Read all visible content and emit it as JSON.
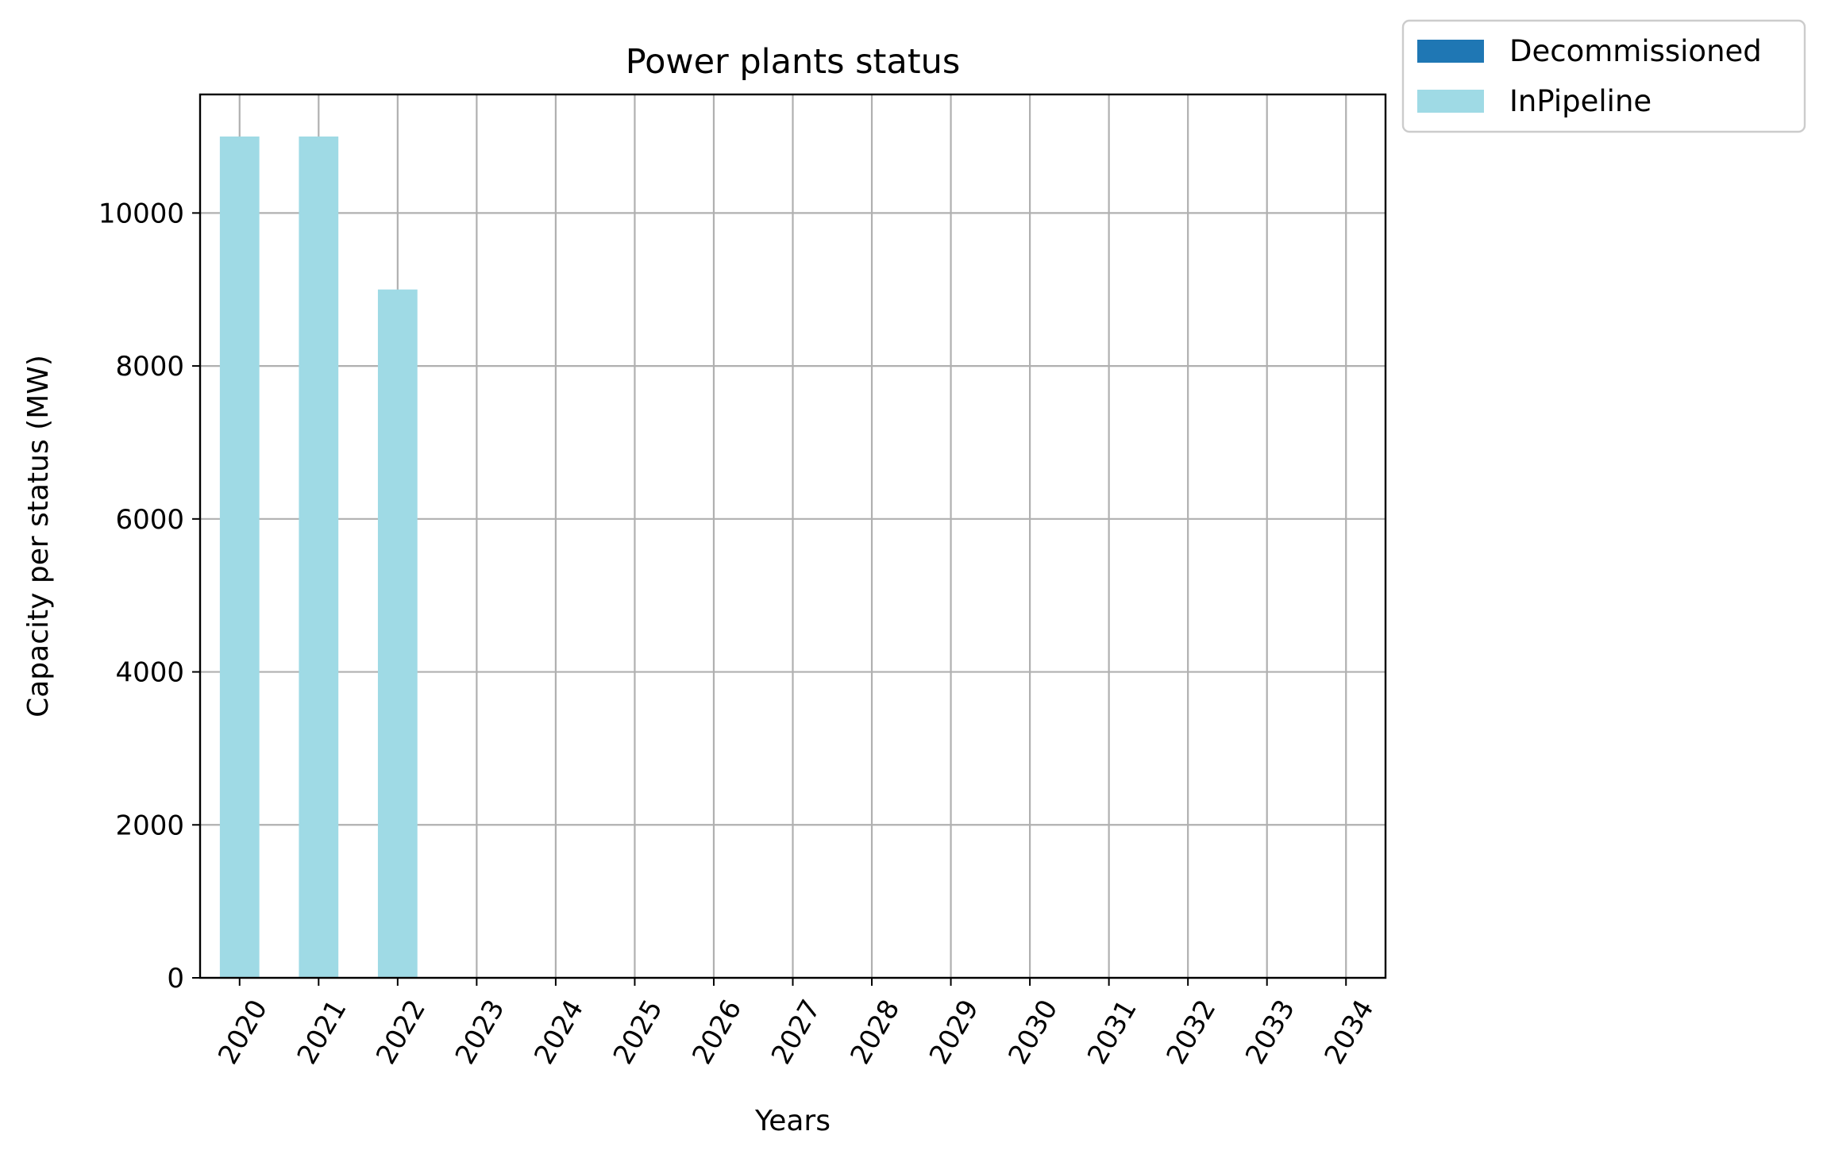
{
  "chart_data": {
    "type": "bar",
    "stacked": true,
    "title": "Power plants status",
    "xlabel": "Years",
    "ylabel": "Capacity per status (MW)",
    "categories": [
      "2020",
      "2021",
      "2022",
      "2023",
      "2024",
      "2025",
      "2026",
      "2027",
      "2028",
      "2029",
      "2030",
      "2031",
      "2032",
      "2033",
      "2034"
    ],
    "series": [
      {
        "name": "Decommissioned",
        "color": "#1f77b4",
        "values": [
          0,
          0,
          0,
          0,
          0,
          0,
          0,
          0,
          0,
          0,
          0,
          0,
          0,
          0,
          0
        ]
      },
      {
        "name": "InPipeline",
        "color": "#9fdae5",
        "values": [
          11000,
          11000,
          9000,
          0,
          0,
          0,
          0,
          0,
          0,
          0,
          0,
          0,
          0,
          0,
          0
        ]
      }
    ],
    "ylim": [
      0,
      11550
    ],
    "yticks": [
      0,
      2000,
      4000,
      6000,
      8000,
      10000
    ],
    "grid": true,
    "legend_position": "outside-top-right",
    "xtick_rotation": 60
  }
}
